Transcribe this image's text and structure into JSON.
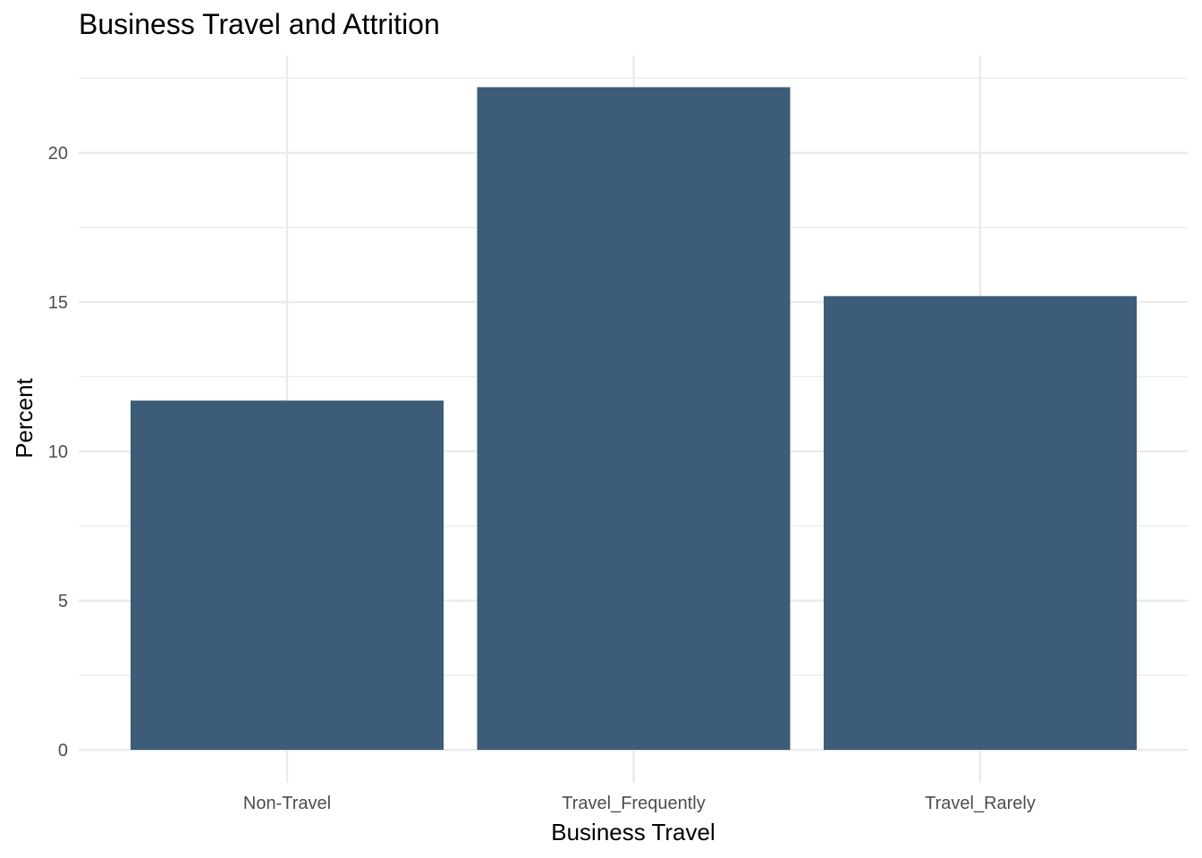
{
  "chart_data": {
    "type": "bar",
    "title": "Business Travel and Attrition",
    "xlabel": "Business Travel",
    "ylabel": "Percent",
    "categories": [
      "Non-Travel",
      "Travel_Frequently",
      "Travel_Rarely"
    ],
    "values": [
      11.7,
      22.2,
      15.2
    ],
    "ylim": [
      0,
      23.3
    ],
    "yticks": [
      0,
      5,
      10,
      15,
      20
    ],
    "ytick_labels": [
      "0",
      "5",
      "10",
      "15",
      "20"
    ],
    "grid": true,
    "bar_color": "#3d5c78",
    "grid_color": "#ebebeb"
  }
}
